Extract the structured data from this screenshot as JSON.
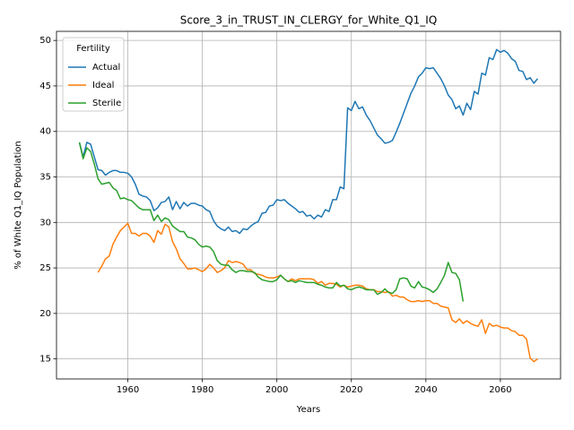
{
  "chart_data": {
    "type": "line",
    "title": "Score_3_in_TRUST_IN_CLERGY_for_White_Q1_IQ",
    "xlabel": "Years",
    "ylabel": "% of White Q1_IQ Population",
    "legend_title": "Fertility",
    "legend": "upper left",
    "grid": true,
    "xlim": [
      1940.85,
      2076.15
    ],
    "xticks": [
      1960,
      1980,
      2000,
      2020,
      2040,
      2060
    ],
    "ylim": [
      12.8,
      51.0
    ],
    "yticks": [
      15,
      20,
      25,
      30,
      35,
      40,
      45,
      50
    ],
    "x": [
      1947,
      1948,
      1949,
      1950,
      1951,
      1952,
      1953,
      1954,
      1955,
      1956,
      1957,
      1958,
      1959,
      1960,
      1961,
      1962,
      1963,
      1964,
      1965,
      1966,
      1967,
      1968,
      1969,
      1970,
      1971,
      1972,
      1973,
      1974,
      1975,
      1976,
      1977,
      1978,
      1979,
      1980,
      1981,
      1982,
      1983,
      1984,
      1985,
      1986,
      1987,
      1988,
      1989,
      1990,
      1991,
      1992,
      1993,
      1994,
      1995,
      1996,
      1997,
      1998,
      1999,
      2000,
      2001,
      2002,
      2003,
      2004,
      2005,
      2006,
      2007,
      2008,
      2009,
      2010,
      2011,
      2012,
      2013,
      2014,
      2015,
      2016,
      2017,
      2018,
      2019,
      2020,
      2021,
      2022,
      2023,
      2024,
      2025,
      2026,
      2027,
      2028,
      2029,
      2030,
      2031,
      2032,
      2033,
      2034,
      2035,
      2036,
      2037,
      2038,
      2039,
      2040,
      2041,
      2042,
      2043,
      2044,
      2045,
      2046,
      2047,
      2048,
      2049,
      2050,
      2051,
      2052,
      2053,
      2054,
      2055,
      2056,
      2057,
      2058,
      2059,
      2060,
      2061,
      2062,
      2063,
      2064,
      2065,
      2066,
      2067,
      2068,
      2069,
      2070
    ],
    "series": [
      {
        "name": "Actual",
        "color": "#1f77b4",
        "values": [
          38.8,
          37.2,
          38.8,
          38.6,
          37.2,
          35.8,
          35.7,
          35.2,
          35.5,
          35.7,
          35.7,
          35.5,
          35.5,
          35.4,
          35.0,
          34.2,
          33.1,
          32.9,
          32.8,
          32.4,
          31.3,
          31.6,
          32.2,
          32.3,
          32.8,
          31.4,
          32.3,
          31.5,
          32.2,
          31.8,
          32.1,
          32.1,
          31.9,
          31.8,
          31.4,
          31.2,
          30.2,
          29.6,
          29.3,
          29.1,
          29.5,
          29.0,
          29.1,
          28.8,
          29.3,
          29.2,
          29.6,
          29.9,
          30.1,
          31.0,
          31.1,
          31.8,
          31.9,
          32.5,
          32.4,
          32.5,
          32.1,
          31.8,
          31.5,
          31.1,
          31.2,
          30.7,
          30.8,
          30.4,
          30.8,
          30.6,
          31.4,
          31.2,
          32.5,
          32.5,
          33.9,
          33.7,
          42.6,
          42.3,
          43.3,
          42.5,
          42.7,
          41.8,
          41.2,
          40.4,
          39.6,
          39.2,
          38.7,
          38.8,
          39.0,
          39.9,
          40.9,
          42.0,
          43.1,
          44.2,
          45.0,
          46.0,
          46.4,
          47.0,
          46.9,
          47.0,
          46.4,
          45.8,
          45.0,
          44.0,
          43.5,
          42.5,
          42.8,
          41.8,
          43.1,
          42.4,
          44.4,
          44.1,
          46.4,
          46.2,
          48.1,
          47.9,
          49.0,
          48.7,
          48.9,
          48.6,
          48.0,
          47.7,
          46.7,
          46.6,
          45.7,
          45.9,
          45.3,
          45.8
        ]
      },
      {
        "name": "Ideal",
        "color": "#ff7f0e",
        "values": [
          null,
          null,
          null,
          null,
          null,
          24.5,
          25.2,
          26.0,
          26.3,
          27.6,
          28.4,
          29.1,
          29.5,
          29.9,
          28.8,
          28.8,
          28.5,
          28.8,
          28.8,
          28.5,
          27.8,
          29.1,
          28.7,
          29.8,
          29.5,
          27.9,
          27.1,
          26.0,
          25.5,
          24.9,
          24.9,
          25.0,
          24.8,
          24.6,
          24.9,
          25.4,
          25.0,
          24.5,
          24.7,
          25.0,
          25.8,
          25.6,
          25.7,
          25.6,
          25.4,
          24.8,
          24.8,
          24.4,
          24.3,
          24.2,
          24.0,
          23.9,
          23.9,
          24.0,
          24.2,
          23.8,
          23.5,
          23.8,
          23.6,
          23.8,
          23.8,
          23.8,
          23.8,
          23.7,
          23.3,
          23.5,
          23.1,
          23.3,
          23.3,
          23.2,
          22.9,
          23.1,
          22.9,
          23.0,
          23.1,
          23.1,
          23.0,
          22.7,
          22.6,
          22.6,
          22.4,
          22.4,
          22.3,
          22.4,
          21.9,
          22.0,
          21.8,
          21.8,
          21.5,
          21.3,
          21.3,
          21.4,
          21.3,
          21.4,
          21.4,
          21.1,
          21.1,
          20.8,
          20.7,
          20.6,
          19.3,
          19.0,
          19.4,
          18.9,
          19.2,
          18.9,
          18.7,
          18.6,
          19.3,
          17.8,
          18.9,
          18.6,
          18.7,
          18.5,
          18.4,
          18.4,
          18.1,
          18.0,
          17.6,
          17.6,
          17.2,
          15.1,
          14.7,
          15.0
        ]
      },
      {
        "name": "Sterile",
        "color": "#2ca02c",
        "values": [
          38.8,
          37.0,
          38.2,
          37.8,
          36.4,
          34.8,
          34.2,
          34.3,
          34.4,
          33.8,
          33.5,
          32.6,
          32.7,
          32.5,
          32.4,
          32.0,
          31.6,
          31.4,
          31.4,
          31.4,
          30.2,
          30.8,
          30.1,
          30.5,
          30.3,
          29.6,
          29.3,
          29.0,
          29.0,
          28.4,
          28.3,
          28.1,
          27.6,
          27.3,
          27.4,
          27.3,
          26.8,
          25.8,
          25.4,
          25.3,
          25.3,
          24.8,
          24.5,
          24.7,
          24.7,
          24.6,
          24.6,
          24.5,
          24.0,
          23.7,
          23.6,
          23.5,
          23.5,
          23.7,
          24.2,
          23.8,
          23.5,
          23.6,
          23.4,
          23.6,
          23.5,
          23.4,
          23.4,
          23.4,
          23.2,
          23.1,
          22.9,
          22.8,
          22.8,
          23.4,
          23.0,
          23.1,
          22.7,
          22.6,
          22.8,
          22.9,
          22.8,
          22.6,
          22.6,
          22.6,
          22.1,
          22.3,
          22.7,
          22.3,
          22.2,
          22.6,
          23.8,
          23.9,
          23.8,
          23.0,
          22.8,
          23.5,
          22.9,
          22.8,
          22.6,
          22.3,
          22.7,
          23.4,
          24.2,
          25.6,
          24.5,
          24.4,
          23.7,
          21.3,
          null,
          null,
          null,
          null,
          null,
          null,
          null,
          null,
          null,
          null,
          null,
          null,
          null,
          null,
          null,
          null,
          null,
          null,
          null,
          null
        ]
      }
    ]
  }
}
